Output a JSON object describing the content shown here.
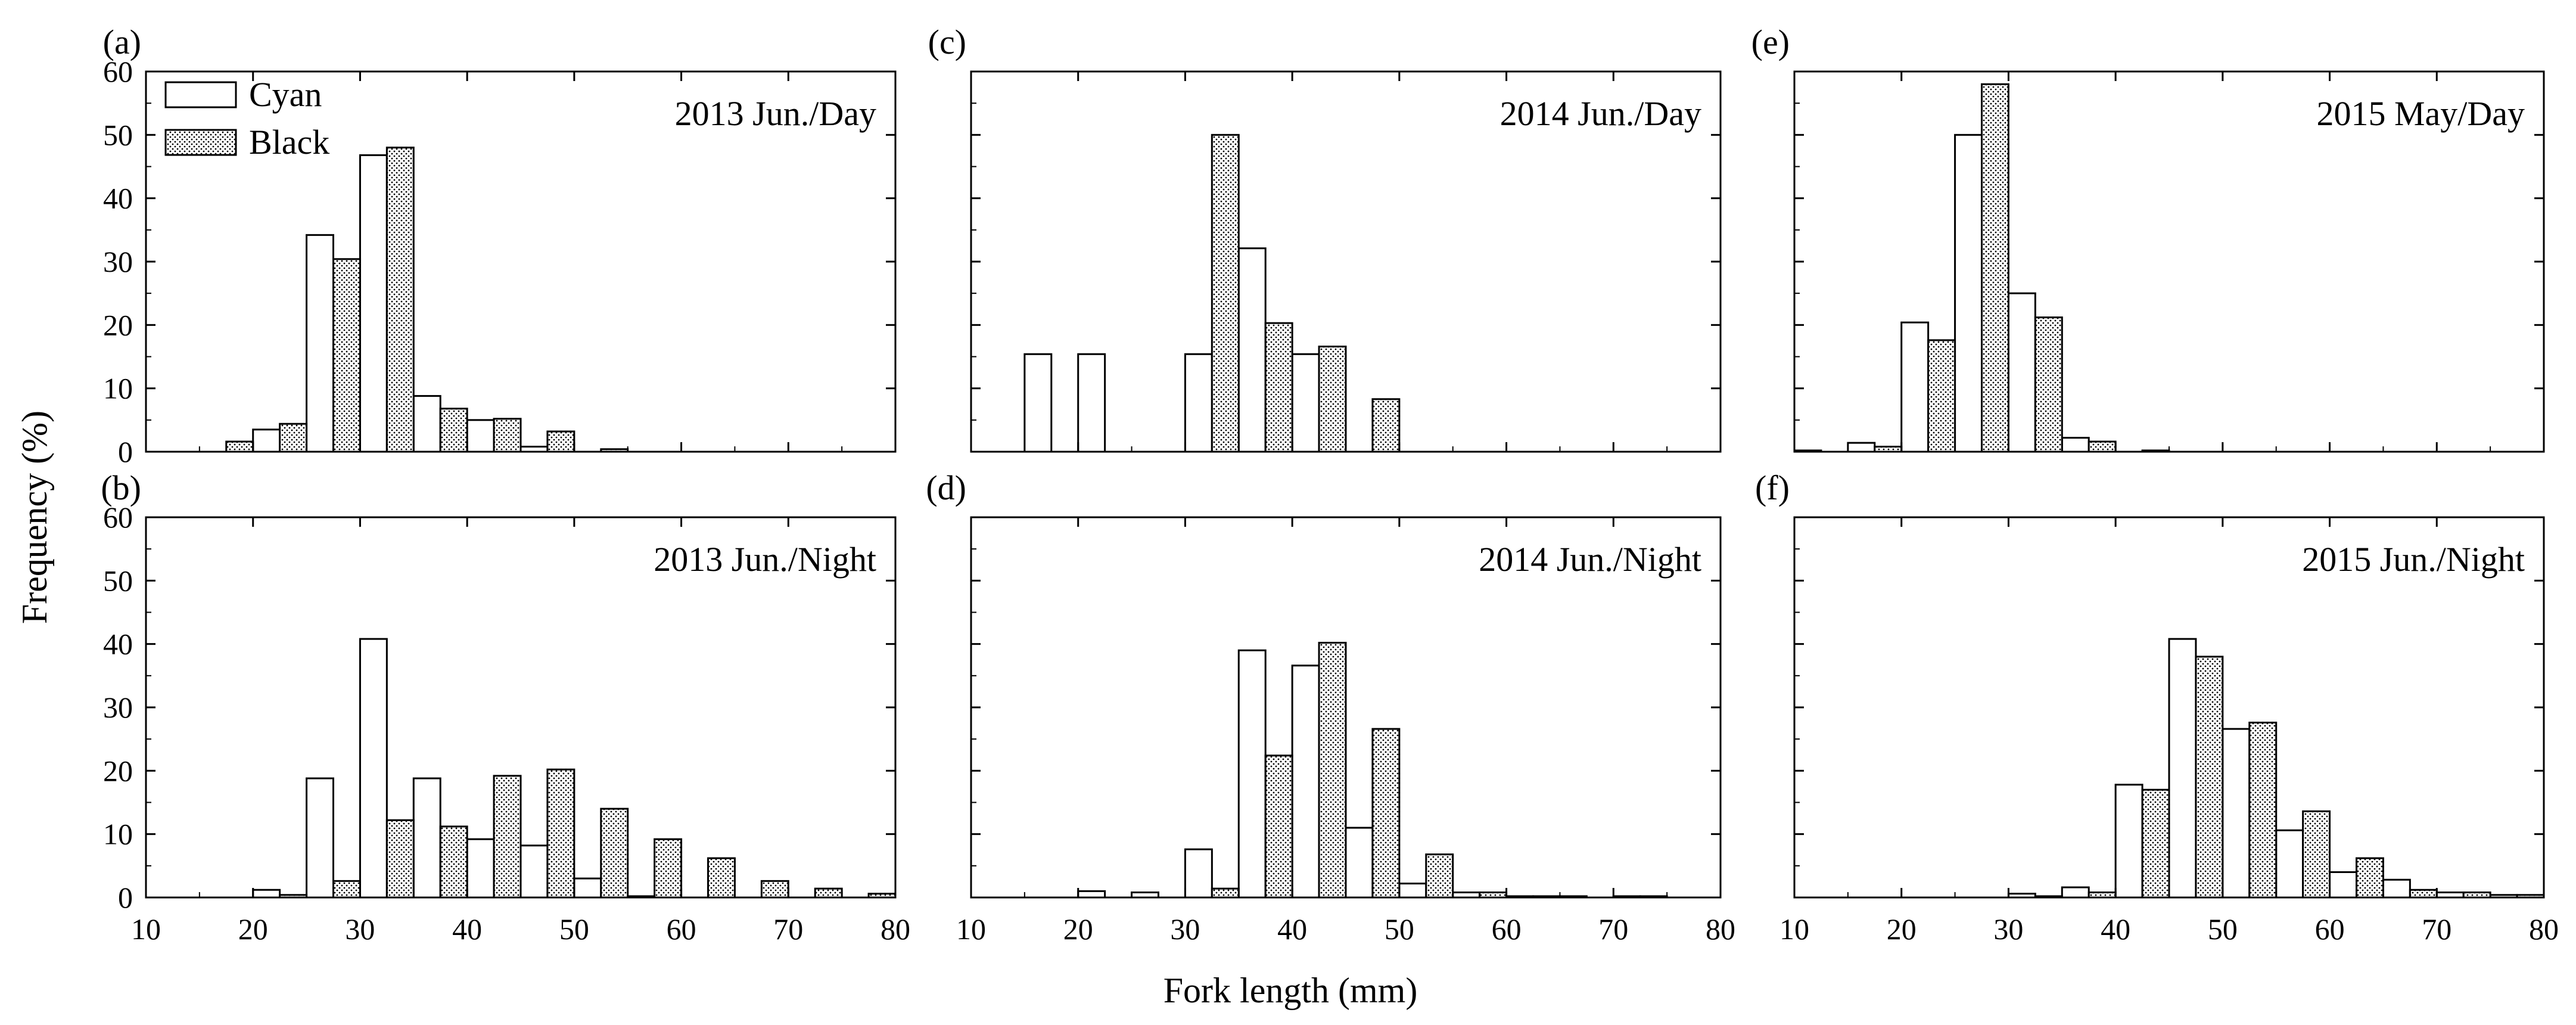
{
  "figure": {
    "ylabel": "Frequency (%)",
    "xlabel": "Fork length (mm)",
    "legend": [
      {
        "key": "cyan",
        "label": "Cyan",
        "fill": "none"
      },
      {
        "key": "black",
        "label": "Black",
        "fill": "stippled"
      }
    ]
  },
  "chart_data": [
    {
      "type": "bar",
      "id": "a",
      "letter": "(a)",
      "title": "2013 Jun./Day",
      "xlim": [
        10,
        80
      ],
      "ylim": [
        0,
        60
      ],
      "xticks": [
        "10",
        "20",
        "30",
        "40",
        "50",
        "60",
        "70",
        "80"
      ],
      "yticks": [
        "0",
        "10",
        "20",
        "30",
        "40",
        "50",
        "60"
      ],
      "show_xtick_labels": false,
      "bin_starts": [
        15,
        20,
        25,
        30,
        35,
        40,
        45,
        50,
        55,
        60,
        65,
        70,
        75
      ],
      "series": [
        {
          "name": "Cyan",
          "values": [
            0,
            3.5,
            34.2,
            46.8,
            8.8,
            5.0,
            0.8,
            0,
            0,
            0,
            0,
            0,
            0
          ]
        },
        {
          "name": "Black",
          "values": [
            1.6,
            4.4,
            30.4,
            48.0,
            6.8,
            5.2,
            3.2,
            0.4,
            0,
            0,
            0,
            0,
            0
          ]
        }
      ]
    },
    {
      "type": "bar",
      "id": "b",
      "letter": "(b)",
      "title": "2013 Jun./Night",
      "xlim": [
        10,
        80
      ],
      "ylim": [
        0,
        60
      ],
      "xticks": [
        "10",
        "20",
        "30",
        "40",
        "50",
        "60",
        "70",
        "80"
      ],
      "yticks": [
        "0",
        "10",
        "20",
        "30",
        "40",
        "50",
        "60"
      ],
      "show_xtick_labels": true,
      "bin_starts": [
        15,
        20,
        25,
        30,
        35,
        40,
        45,
        50,
        55,
        60,
        65,
        70,
        75
      ],
      "series": [
        {
          "name": "Cyan",
          "values": [
            0,
            1.2,
            18.8,
            40.8,
            18.8,
            9.2,
            8.2,
            3.0,
            0.2,
            0,
            0,
            0,
            0
          ]
        },
        {
          "name": "Black",
          "values": [
            0,
            0.4,
            2.6,
            12.2,
            11.2,
            19.2,
            20.2,
            14.0,
            9.2,
            6.2,
            2.6,
            1.4,
            0.6
          ]
        }
      ]
    },
    {
      "type": "bar",
      "id": "c",
      "letter": "(c)",
      "title": "2014 Jun./Day",
      "xlim": [
        10,
        80
      ],
      "ylim": [
        0,
        60
      ],
      "xticks": [
        "10",
        "20",
        "30",
        "40",
        "50",
        "60",
        "70",
        "80"
      ],
      "yticks": [
        "0",
        "10",
        "20",
        "30",
        "40",
        "50",
        "60"
      ],
      "show_xtick_labels": false,
      "bin_starts": [
        15,
        20,
        25,
        30,
        35,
        40,
        45,
        50,
        55,
        60,
        65,
        70,
        75
      ],
      "series": [
        {
          "name": "Cyan",
          "values": [
            15.4,
            15.4,
            0,
            15.4,
            32.1,
            15.4,
            0,
            0,
            0,
            0,
            0,
            0,
            0
          ]
        },
        {
          "name": "Black",
          "values": [
            0,
            0,
            0,
            50.0,
            20.3,
            16.6,
            8.3,
            0,
            0,
            0,
            0,
            0,
            0
          ]
        }
      ]
    },
    {
      "type": "bar",
      "id": "d",
      "letter": "(d)",
      "title": "2014 Jun./Night",
      "xlim": [
        10,
        80
      ],
      "ylim": [
        0,
        60
      ],
      "xticks": [
        "10",
        "20",
        "30",
        "40",
        "50",
        "60",
        "70",
        "80"
      ],
      "yticks": [
        "0",
        "10",
        "20",
        "30",
        "40",
        "50",
        "60"
      ],
      "show_xtick_labels": true,
      "bin_starts": [
        15,
        20,
        25,
        30,
        35,
        40,
        45,
        50,
        55,
        60,
        65,
        70,
        75
      ],
      "series": [
        {
          "name": "Cyan",
          "values": [
            0,
            1.0,
            0.8,
            7.6,
            39.0,
            36.6,
            11.0,
            2.2,
            0.8,
            0.2,
            0.2,
            0.2,
            0
          ]
        },
        {
          "name": "Black",
          "values": [
            0,
            0,
            0,
            1.4,
            22.4,
            40.2,
            26.6,
            6.8,
            0.8,
            0.2,
            0,
            0.2,
            0
          ]
        }
      ]
    },
    {
      "type": "bar",
      "id": "e",
      "letter": "(e)",
      "title": "2015 May/Day",
      "xlim": [
        10,
        80
      ],
      "ylim": [
        0,
        60
      ],
      "xticks": [
        "10",
        "20",
        "30",
        "40",
        "50",
        "60",
        "70",
        "80"
      ],
      "yticks": [
        "0",
        "10",
        "20",
        "30",
        "40",
        "50",
        "60"
      ],
      "show_xtick_labels": false,
      "bin_starts": [
        10,
        15,
        20,
        25,
        30,
        35,
        40,
        45,
        50,
        55,
        60,
        65,
        70,
        75
      ],
      "series": [
        {
          "name": "Cyan",
          "values": [
            0.2,
            1.4,
            20.4,
            50.0,
            25.0,
            2.2,
            0,
            0,
            0,
            0,
            0,
            0,
            0,
            0
          ]
        },
        {
          "name": "Black",
          "values": [
            0,
            0.8,
            17.6,
            58.0,
            21.2,
            1.6,
            0.2,
            0,
            0,
            0,
            0,
            0,
            0,
            0
          ]
        }
      ]
    },
    {
      "type": "bar",
      "id": "f",
      "letter": "(f)",
      "title": "2015 Jun./Night",
      "xlim": [
        10,
        80
      ],
      "ylim": [
        0,
        60
      ],
      "xticks": [
        "10",
        "20",
        "30",
        "40",
        "50",
        "60",
        "70",
        "80"
      ],
      "yticks": [
        "0",
        "10",
        "20",
        "30",
        "40",
        "50",
        "60"
      ],
      "show_xtick_labels": true,
      "bin_starts": [
        15,
        20,
        25,
        30,
        35,
        40,
        45,
        50,
        55,
        60,
        65,
        70,
        75
      ],
      "series": [
        {
          "name": "Cyan",
          "values": [
            0,
            0,
            0,
            0.6,
            1.6,
            17.8,
            40.8,
            26.6,
            10.6,
            4.0,
            2.8,
            0.8,
            0.4
          ]
        },
        {
          "name": "Black",
          "values": [
            0,
            0,
            0,
            0.2,
            0.8,
            17.0,
            38.0,
            27.6,
            13.6,
            6.2,
            1.2,
            0.8,
            0.4
          ]
        }
      ]
    }
  ]
}
